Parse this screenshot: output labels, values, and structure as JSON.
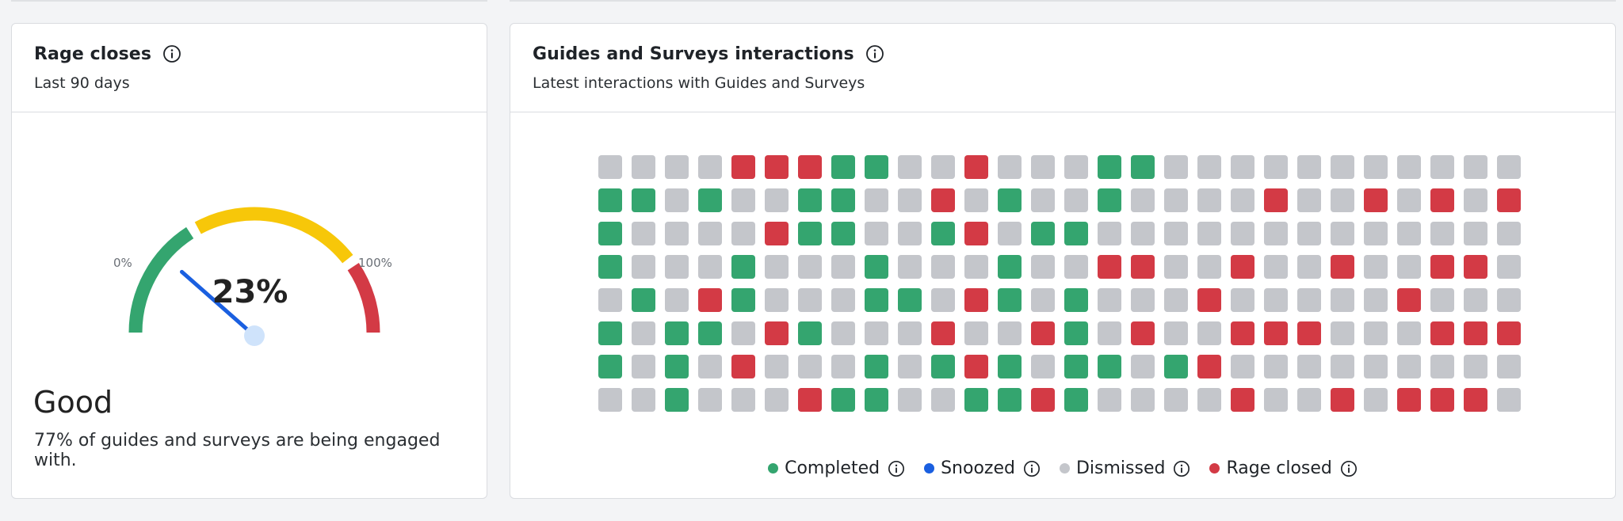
{
  "colors": {
    "completed": "#34a56f",
    "snoozed": "#1a5fe0",
    "dismissed": "#c4c6cb",
    "rage_closed": "#d33a45",
    "gauge_good": "#34a56f",
    "gauge_warn": "#f7c709",
    "gauge_bad": "#d33a45",
    "needle": "#1a5fe0",
    "needle_hub": "#cfe3fb"
  },
  "rage_card": {
    "title": "Rage closes",
    "subtitle": "Last 90 days",
    "gauge": {
      "min_label": "0%",
      "max_label": "100%",
      "value_label": "23%",
      "value_fraction": 0.23,
      "zones": [
        {
          "name": "good",
          "from": 0.0,
          "to": 0.33
        },
        {
          "name": "warn",
          "from": 0.33,
          "to": 0.8
        },
        {
          "name": "bad",
          "from": 0.8,
          "to": 1.0
        }
      ]
    },
    "rating": "Good",
    "description": "77% of guides and surveys are being engaged with."
  },
  "interactions_card": {
    "title": "Guides and Surveys interactions",
    "subtitle": "Latest interactions with Guides and Surveys",
    "legend": [
      {
        "key": "completed",
        "label": "Completed",
        "icon": "info-icon"
      },
      {
        "key": "snoozed",
        "label": "Snoozed",
        "icon": "info-icon"
      },
      {
        "key": "dismissed",
        "label": "Dismissed",
        "icon": "info-icon"
      },
      {
        "key": "rage_closed",
        "label": "Rage closed",
        "icon": "info-icon"
      }
    ],
    "code_map": {
      "G": "completed",
      "S": "snoozed",
      "D": "dismissed",
      "R": "rage_closed"
    },
    "grid_rows": [
      "DDDDRRRGGDDRDDDGGDDDDDDDDDDD",
      "GGDGDDGGDDRDGDDGDDDDRDDRDRDR",
      "GDDDDRGGDDGRDGGDDDDDDDDDDDDD",
      "GDDDGDDDGDDDGDDRRDDRDDRDDRRD",
      "DGDRGDDDGGDRGDGDDDRDDDDDRDDD",
      "GDGGDRGDDDRDDRGDRDDRRRDDDRRR",
      "GDGDRDDDGDGRGDGGDGRDDDDDDDDD",
      "DDGDDDRGGDDGGRGDDDDRDDRDRRRD"
    ]
  }
}
